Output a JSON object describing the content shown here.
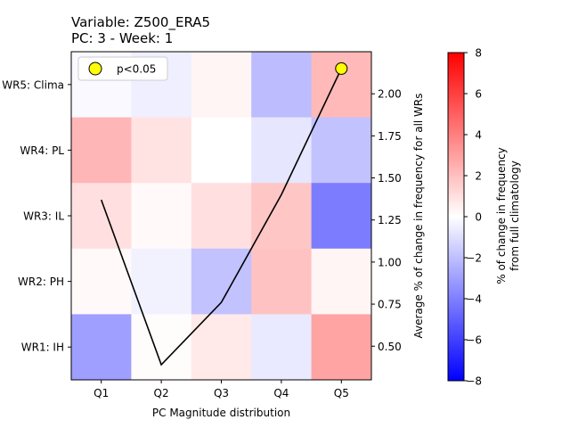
{
  "chart_data": {
    "type": "heatmap",
    "title": "Variable: Z500_ERA5\nPC: 3 - Week: 1",
    "xlabel": "PC Magnitude distribution",
    "ylabel_right": "Average % of change in frequency for all WRs",
    "colorbar_label": "% of change in frequency\nfrom full climatology",
    "x_categories": [
      "Q1",
      "Q2",
      "Q3",
      "Q4",
      "Q5"
    ],
    "y_categories": [
      "WR5: Clima",
      "WR4: PL",
      "WR3: IL",
      "WR2: PH",
      "WR1: IH"
    ],
    "matrix": [
      [
        -0.2,
        -0.5,
        0.3,
        -2.1,
        2.2
      ],
      [
        2.3,
        0.9,
        0.0,
        -0.8,
        -1.9
      ],
      [
        1.0,
        0.2,
        1.0,
        1.8,
        -4.1
      ],
      [
        0.2,
        -0.4,
        -1.9,
        1.9,
        0.3
      ],
      [
        -3.0,
        0.1,
        0.7,
        -0.7,
        2.9
      ]
    ],
    "colorbar": {
      "range": [
        -8,
        8
      ],
      "ticks": [
        8,
        6,
        4,
        2,
        0,
        -2,
        -4,
        -6,
        -8
      ],
      "colormap": "bwr"
    },
    "line_series": {
      "x": [
        "Q1",
        "Q2",
        "Q3",
        "Q4",
        "Q5"
      ],
      "values": [
        1.37,
        0.39,
        0.76,
        1.4,
        2.15
      ],
      "color": "#000000"
    },
    "significant_points": [
      {
        "x": "Q5",
        "value": 2.15
      }
    ],
    "right_axis": {
      "range": [
        0.3,
        2.25
      ],
      "ticks": [
        "0.50",
        "0.75",
        "1.00",
        "1.25",
        "1.50",
        "1.75",
        "2.00"
      ]
    },
    "legend": {
      "label": "p<0.05",
      "marker_color": "#ffff00",
      "placement": "top-left"
    }
  }
}
